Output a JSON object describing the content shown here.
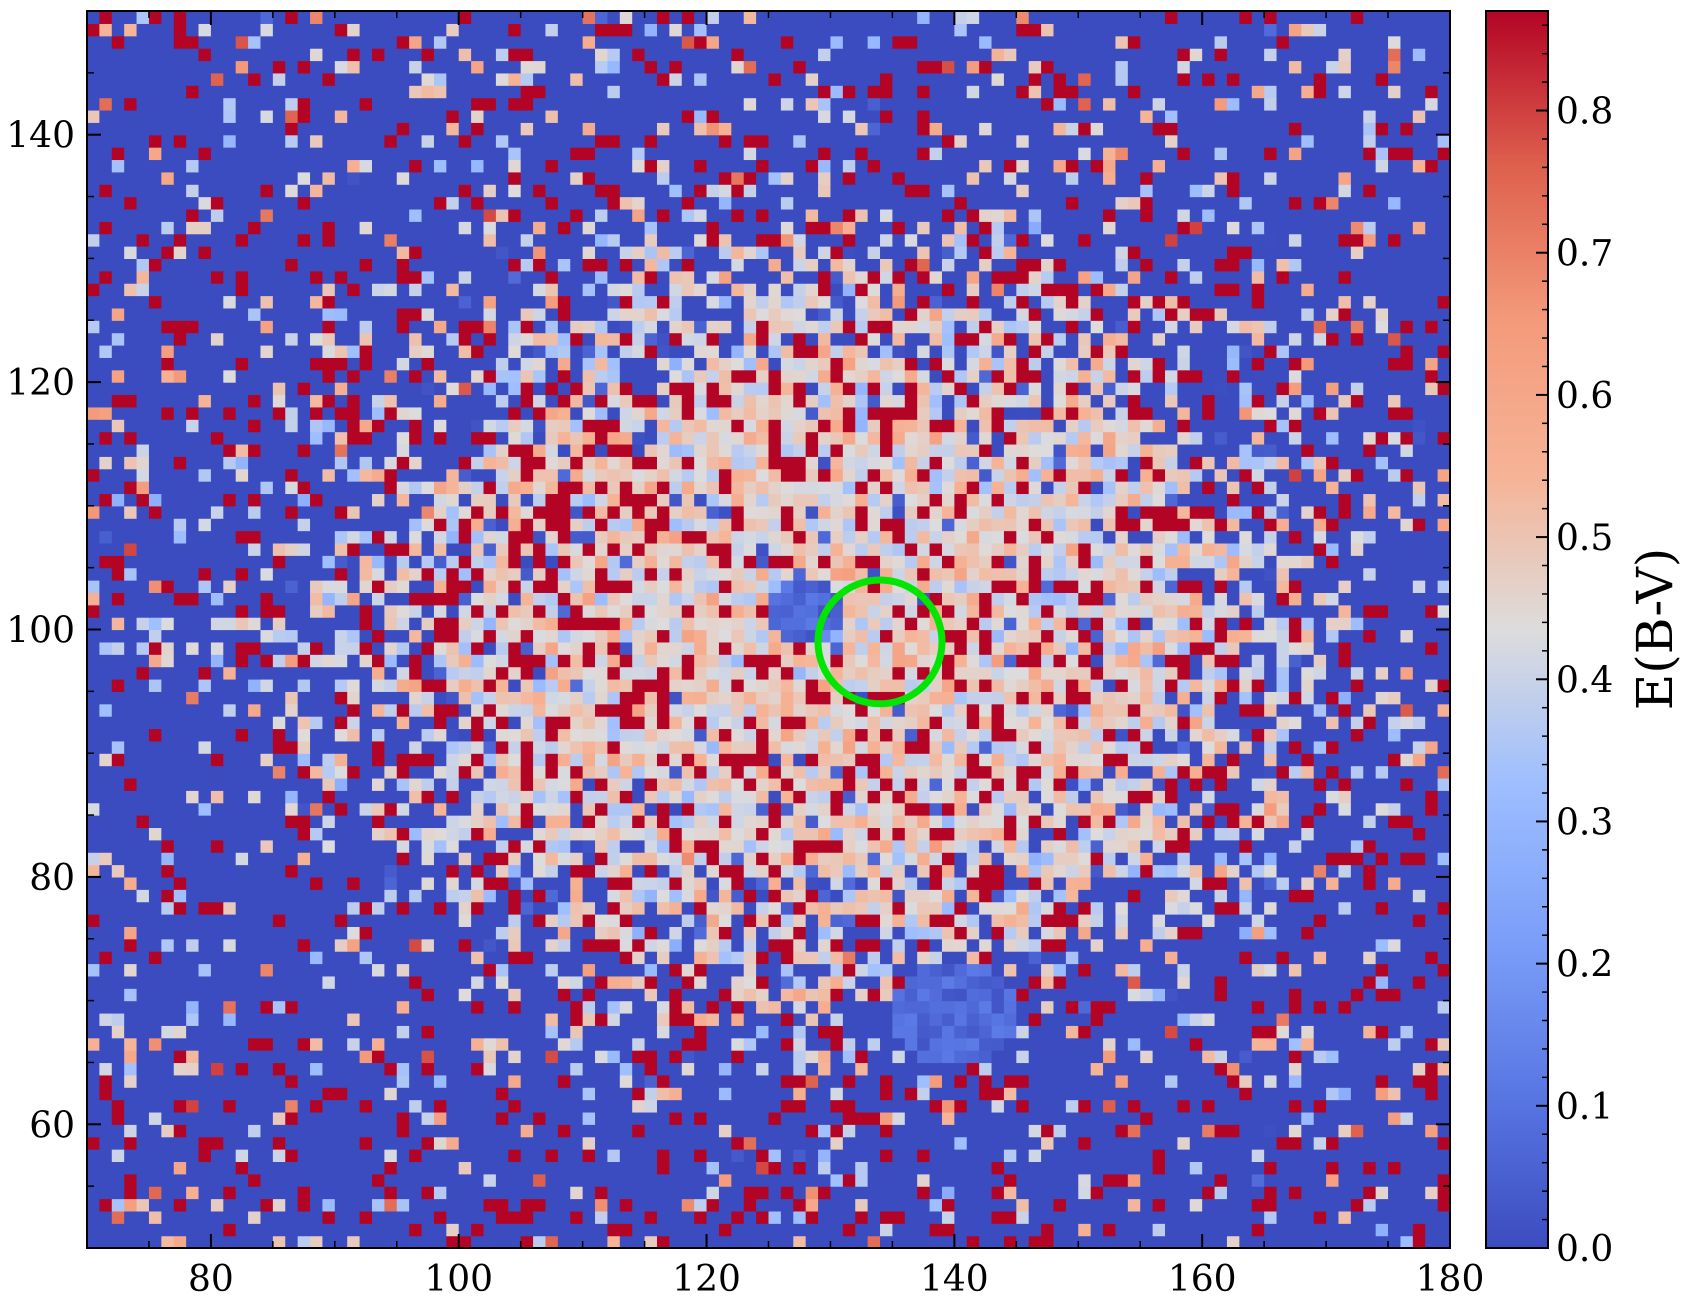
{
  "chart_data": {
    "type": "heatmap",
    "title": "",
    "xlabel": "",
    "ylabel": "",
    "xlim": [
      70,
      180
    ],
    "ylim": [
      50,
      150
    ],
    "x_ticks": [
      80,
      100,
      120,
      140,
      160,
      180
    ],
    "y_ticks": [
      60,
      80,
      100,
      120,
      140
    ],
    "grid": false,
    "pixel_size": 1,
    "colormap": "coolwarm",
    "color_range": [
      0.0,
      0.87
    ],
    "colorbar": {
      "label": "E(B-V)",
      "ticks": [
        0.0,
        0.1,
        0.2,
        0.3,
        0.4,
        0.5,
        0.6,
        0.7,
        0.8
      ],
      "tick_labels": [
        "0.0",
        "0.1",
        "0.2",
        "0.3",
        "0.4",
        "0.5",
        "0.6",
        "0.7",
        "0.8"
      ]
    },
    "structure": {
      "center": [
        130,
        100
      ],
      "background_value": 0.0,
      "nebula_peak_value": 0.55,
      "saturated_value": 0.87
    },
    "annotations": [
      {
        "type": "circle",
        "center": [
          134,
          99
        ],
        "radius": 5,
        "color": "#00e600"
      }
    ]
  }
}
